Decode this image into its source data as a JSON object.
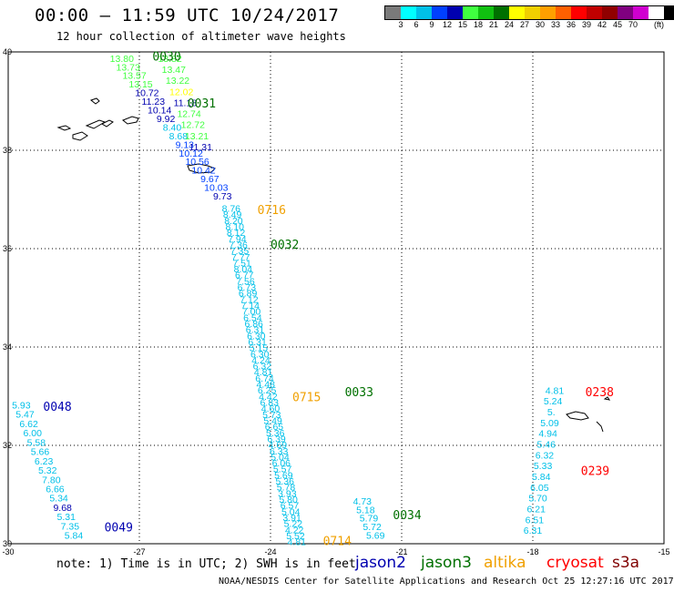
{
  "title": "00:00 – 11:59 UTC 10/24/2017",
  "subtitle": "12 hour collection of altimeter wave heights",
  "colorbar": {
    "colors": [
      "#7a7a7a",
      "#00ffff",
      "#00c0e8",
      "#0040ff",
      "#0000b0",
      "#40ff40",
      "#10c010",
      "#007000",
      "#ffff00",
      "#f0d000",
      "#ffa000",
      "#ff6000",
      "#ff0000",
      "#c00000",
      "#900000",
      "#800080",
      "#d000d0",
      "#ffffff",
      "#000000"
    ],
    "labels": [
      "3",
      "6",
      "9",
      "12",
      "15",
      "18",
      "21",
      "24",
      "27",
      "30",
      "33",
      "36",
      "39",
      "42",
      "45",
      "70"
    ],
    "unit": "(ft)"
  },
  "axes": {
    "lon_ticks": [
      "-30",
      "-27",
      "-24",
      "-21",
      "-18",
      "-15"
    ],
    "lat_ticks": [
      "40",
      "38",
      "36",
      "34",
      "32",
      "30"
    ],
    "lon_range": [
      -30,
      -15
    ],
    "lat_range": [
      30,
      40
    ]
  },
  "passes": [
    {
      "label": "0030",
      "color": "#007000",
      "lon": -26.7,
      "lat": 39.82
    },
    {
      "label": "0031",
      "color": "#007000",
      "lon": -25.9,
      "lat": 38.87
    },
    {
      "label": "0716",
      "color": "#f0a000",
      "lon": -24.3,
      "lat": 36.7
    },
    {
      "label": "0032",
      "color": "#007000",
      "lon": -24.0,
      "lat": 36.0
    },
    {
      "label": "0033",
      "color": "#007000",
      "lon": -22.3,
      "lat": 33.0
    },
    {
      "label": "0715",
      "color": "#f0a000",
      "lon": -23.5,
      "lat": 32.9
    },
    {
      "label": "0048",
      "color": "#0000b0",
      "lon": -29.2,
      "lat": 32.7
    },
    {
      "label": "0049",
      "color": "#0000b0",
      "lon": -27.8,
      "lat": 30.25
    },
    {
      "label": "0034",
      "color": "#007000",
      "lon": -21.2,
      "lat": 30.5
    },
    {
      "label": "0714",
      "color": "#f0a000",
      "lon": -22.8,
      "lat": 29.97
    },
    {
      "label": "0238",
      "color": "#ff0000",
      "lon": -16.8,
      "lat": 33.0
    },
    {
      "label": "0239",
      "color": "#ff0000",
      "lon": -16.9,
      "lat": 31.4
    }
  ],
  "tracks": [
    {
      "name": "jason3-0030",
      "values": [
        "13.80",
        "13.73",
        "13.57",
        "13.15",
        "10.72",
        "11.23",
        "10.14",
        "9.92",
        "8.40",
        "8.68",
        "9.13",
        "10.12",
        "10.56",
        "10.42",
        "9.67",
        "10.03",
        "9.73"
      ],
      "colors": [
        "#40ff40",
        "#40ff40",
        "#40ff40",
        "#40ff40",
        "#0000b0",
        "#0000b0",
        "#0000b0",
        "#0000b0",
        "#00c0e8",
        "#00c0e8",
        "#0040ff",
        "#0040ff",
        "#0040ff",
        "#0040ff",
        "#0040ff",
        "#0040ff",
        "#0000b0"
      ],
      "start": [
        -27.4,
        39.8
      ],
      "end": [
        -25.1,
        37.0
      ]
    },
    {
      "name": "jason3-0031",
      "values": [
        "13.82",
        "13.47",
        "13.22",
        "12.02",
        "11.18",
        "12.74",
        "12.72",
        "13.21",
        "11.31"
      ],
      "colors": [
        "#40ff40",
        "#40ff40",
        "#40ff40",
        "#ffff00",
        "#0000b0",
        "#40ff40",
        "#40ff40",
        "#40ff40",
        "#0000b0"
      ],
      "start": [
        -26.3,
        39.8
      ],
      "end": [
        -25.6,
        38.0
      ]
    },
    {
      "name": "jason2-0032",
      "values": [
        "8.76",
        "8.49",
        "8.20",
        "8.10",
        "8.12",
        "7.94",
        "7.36",
        "7.35",
        "7.77",
        "7.51",
        "8.04",
        "6.77",
        "7.56",
        "6.73",
        "6.89",
        "7.12",
        "7.14",
        "7.00",
        "6.54",
        "6.86",
        "6.31",
        "6.30",
        "6.31",
        "5.15",
        "6.30",
        "4.24",
        "6.32",
        "4.81",
        "6.74",
        "4.48",
        "6.25",
        "4.42",
        "6.83",
        "4.60",
        "5.73",
        "5.49",
        "6.65",
        "5.36",
        "6.39",
        "4.69",
        "6.33",
        "5.04",
        "6.06",
        "5.57",
        "5.69",
        "5.36",
        "5.78",
        "3.93",
        "5.80",
        "6.57",
        "5.04",
        "3.91",
        "5.22",
        "4.22",
        "5.52",
        "4.81"
      ],
      "colors": [
        "#00c0e8"
      ],
      "start": [
        -24.9,
        36.75
      ],
      "end": [
        -23.4,
        29.97
      ]
    },
    {
      "name": "jason3-0033",
      "values": [
        "4.73",
        "5.18",
        "5.79",
        "5.72",
        "5.69"
      ],
      "colors": [
        "#00c0e8"
      ],
      "start": [
        -21.9,
        30.8
      ],
      "end": [
        -21.6,
        30.1
      ]
    },
    {
      "name": "jason2-0048",
      "values": [
        "5.93",
        "5.47",
        "6.62",
        "6.00",
        "5.58",
        "5.66",
        "6.23",
        "5.32",
        "7.80",
        "6.66",
        "5.34",
        "9.68",
        "5.31",
        "7.35",
        "5.84"
      ],
      "colors": [
        "#00c0e8",
        "#00c0e8",
        "#00c0e8",
        "#00c0e8",
        "#00c0e8",
        "#00c0e8",
        "#00c0e8",
        "#00c0e8",
        "#00c0e8",
        "#00c0e8",
        "#00c0e8",
        "#0000b0",
        "#00c0e8",
        "#00c0e8",
        "#00c0e8"
      ],
      "start": [
        -29.7,
        32.75
      ],
      "end": [
        -28.5,
        30.1
      ]
    },
    {
      "name": "cryosat-0238",
      "values": [
        "4.81",
        "5.24",
        "5.",
        "5.09",
        "4.94",
        "5.46",
        "6.32",
        "5.33",
        "5.84",
        "6.05",
        "5.70",
        "6.21",
        "6.51",
        "6.31"
      ],
      "colors": [
        "#00c0e8"
      ],
      "start": [
        -17.5,
        33.05
      ],
      "end": [
        -18.0,
        30.2
      ]
    }
  ],
  "legend": {
    "note": "note: 1) Time is in UTC; 2) SWH is in feet",
    "items": [
      {
        "label": "jason2",
        "color": "#0000b0"
      },
      {
        "label": "jason3",
        "color": "#007000"
      },
      {
        "label": "altika",
        "color": "#f0a000"
      },
      {
        "label": "cryosat",
        "color": "#ff0000"
      },
      {
        "label": "s3a",
        "color": "#800000"
      }
    ]
  },
  "footer": "NOAA/NESDIS Center for Satellite Applications and Research    Oct 25 12:27:16 UTC 2017"
}
